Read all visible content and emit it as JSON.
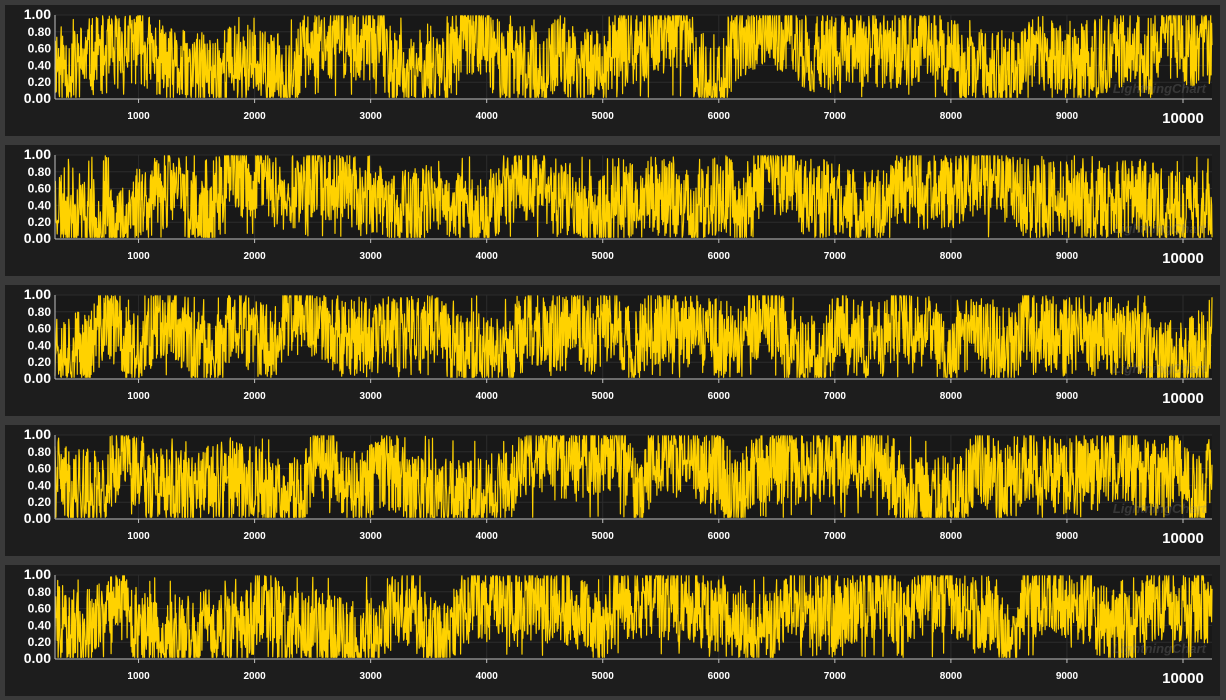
{
  "watermark": "LightningChart",
  "colors": {
    "page_bg": "#3a3a3a",
    "panel_bg": "#1d1d1d",
    "series": "#ffd200",
    "text": "#ffffff"
  },
  "chart_data": [
    {
      "type": "line",
      "series": [
        {
          "seed": 11,
          "color": "#ffd200"
        }
      ],
      "xlim": [
        280,
        10250
      ],
      "ylim": [
        0,
        1
      ],
      "x_ticks": [
        1000,
        2000,
        3000,
        4000,
        5000,
        6000,
        7000,
        8000,
        9000,
        10000
      ],
      "y_ticks": [
        "1.00",
        "0.80",
        "0.60",
        "0.40",
        "0.20",
        "0.00"
      ],
      "grid": true,
      "xlabel": "",
      "ylabel": ""
    },
    {
      "type": "line",
      "series": [
        {
          "seed": 23,
          "color": "#ffd200"
        }
      ],
      "xlim": [
        280,
        10250
      ],
      "ylim": [
        0,
        1
      ],
      "x_ticks": [
        1000,
        2000,
        3000,
        4000,
        5000,
        6000,
        7000,
        8000,
        9000,
        10000
      ],
      "y_ticks": [
        "1.00",
        "0.80",
        "0.60",
        "0.40",
        "0.20",
        "0.00"
      ],
      "grid": true,
      "xlabel": "",
      "ylabel": ""
    },
    {
      "type": "line",
      "series": [
        {
          "seed": 37,
          "color": "#ffd200"
        }
      ],
      "xlim": [
        280,
        10250
      ],
      "ylim": [
        0,
        1
      ],
      "x_ticks": [
        1000,
        2000,
        3000,
        4000,
        5000,
        6000,
        7000,
        8000,
        9000,
        10000
      ],
      "y_ticks": [
        "1.00",
        "0.80",
        "0.60",
        "0.40",
        "0.20",
        "0.00"
      ],
      "grid": true,
      "xlabel": "",
      "ylabel": ""
    },
    {
      "type": "line",
      "series": [
        {
          "seed": 41,
          "color": "#ffd200"
        }
      ],
      "xlim": [
        280,
        10250
      ],
      "ylim": [
        0,
        1
      ],
      "x_ticks": [
        1000,
        2000,
        3000,
        4000,
        5000,
        6000,
        7000,
        8000,
        9000,
        10000
      ],
      "y_ticks": [
        "1.00",
        "0.80",
        "0.60",
        "0.40",
        "0.20",
        "0.00"
      ],
      "grid": true,
      "xlabel": "",
      "ylabel": ""
    },
    {
      "type": "line",
      "series": [
        {
          "seed": 59,
          "color": "#ffd200"
        }
      ],
      "xlim": [
        280,
        10250
      ],
      "ylim": [
        0,
        1
      ],
      "x_ticks": [
        1000,
        2000,
        3000,
        4000,
        5000,
        6000,
        7000,
        8000,
        9000,
        10000
      ],
      "y_ticks": [
        "1.00",
        "0.80",
        "0.60",
        "0.40",
        "0.20",
        "0.00"
      ],
      "grid": true,
      "xlabel": "",
      "ylabel": ""
    }
  ]
}
